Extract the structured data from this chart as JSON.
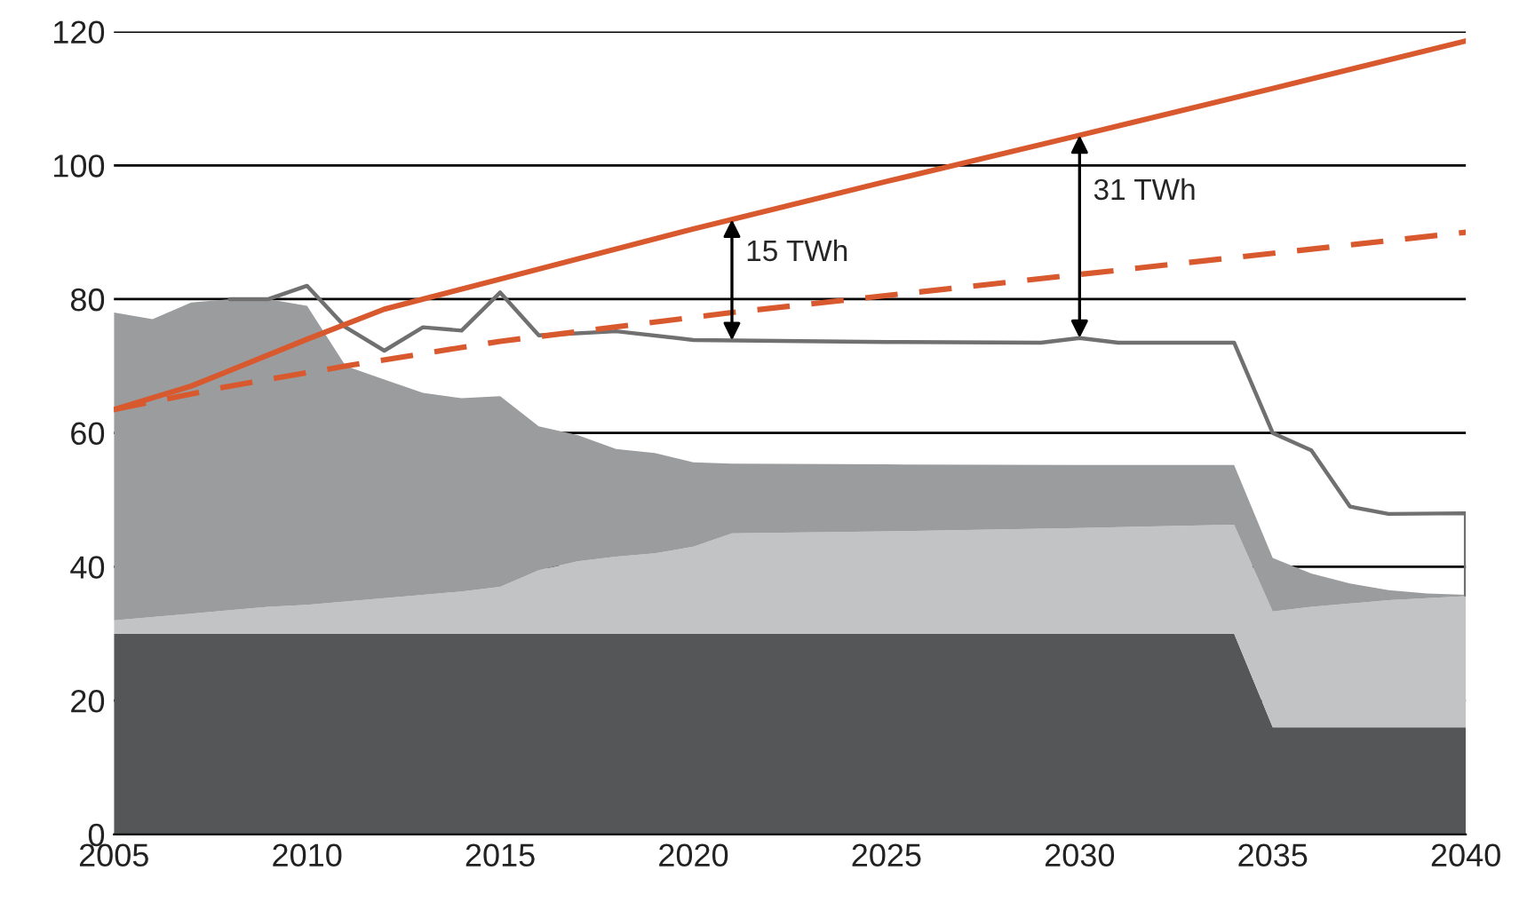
{
  "chart_data": {
    "type": "area",
    "stacked": true,
    "x": [
      2005,
      2006,
      2007,
      2008,
      2009,
      2010,
      2011,
      2012,
      2013,
      2014,
      2015,
      2016,
      2017,
      2018,
      2019,
      2020,
      2021,
      2025,
      2030,
      2034,
      2035,
      2036,
      2037,
      2038,
      2039,
      2040
    ],
    "series": [
      {
        "color": "#545657",
        "values": [
          30,
          30,
          30,
          30,
          30,
          30,
          30,
          30,
          30,
          30,
          30,
          30,
          30,
          30,
          30,
          30,
          30,
          30,
          30,
          30,
          16,
          16,
          16,
          16,
          16,
          16
        ]
      },
      {
        "color": "#c1c3c5",
        "values": [
          2,
          2.5,
          3,
          3.5,
          4,
          4.3,
          4.8,
          5.3,
          5.8,
          6.3,
          7,
          9.5,
          10.8,
          11.5,
          12,
          13,
          15,
          15.3,
          15.8,
          16.3,
          17.3,
          18,
          18.5,
          19,
          19.3,
          19.6
        ]
      },
      {
        "color": "#9b9c9e",
        "values": [
          46,
          44.5,
          46.5,
          46.5,
          46,
          44.7,
          35.2,
          32.7,
          30.2,
          28.9,
          28.5,
          21.5,
          18.9,
          16.1,
          15,
          12.6,
          10.4,
          10,
          9.4,
          8.9,
          8,
          5,
          3,
          1.5,
          0.7,
          0.2
        ]
      },
      {
        "type": "line",
        "color": "#707070",
        "line_style": "solid",
        "x": [
          2008,
          2009,
          2010,
          2011,
          2012,
          2013,
          2014,
          2015,
          2016,
          2018,
          2020,
          2025,
          2029,
          2030,
          2031,
          2034,
          2035,
          2036,
          2037,
          2038,
          2040,
          2040
        ],
        "values": [
          80,
          80,
          82,
          75.8,
          72.3,
          75.8,
          75.3,
          81,
          74.6,
          75.2,
          73.9,
          73.6,
          73.5,
          74.2,
          73.5,
          73.5,
          60,
          57.4,
          49,
          47.9,
          48,
          35.8
        ]
      },
      {
        "type": "line",
        "color": "#d9592f",
        "line_style": "solid",
        "x": [
          2005,
          2007,
          2010,
          2012,
          2015,
          2020,
          2025,
          2030,
          2035,
          2040
        ],
        "values": [
          63.5,
          67,
          74,
          78.5,
          83,
          90.5,
          97.6,
          104.5,
          111.5,
          118.6
        ]
      },
      {
        "type": "line",
        "color": "#d9592f",
        "line_style": "dashed",
        "x": [
          2005,
          2008,
          2011,
          2015,
          2021,
          2030,
          2040
        ],
        "values": [
          63.5,
          67,
          70,
          73.7,
          78,
          83.7,
          90
        ]
      }
    ],
    "annotations": [
      {
        "text": "15 TWh",
        "x": 2021,
        "y": 91.92
      },
      {
        "text": "31 TWh",
        "x": 2030,
        "y": 104.5
      }
    ],
    "xlim": [
      2005,
      2040
    ],
    "xticks": [
      2005,
      2010,
      2015,
      2020,
      2025,
      2030,
      2035,
      2040
    ],
    "ylim": [
      0,
      120
    ],
    "yticks": [
      0,
      20,
      40,
      60,
      80,
      100,
      120
    ],
    "grid": "y",
    "legend": false
  }
}
